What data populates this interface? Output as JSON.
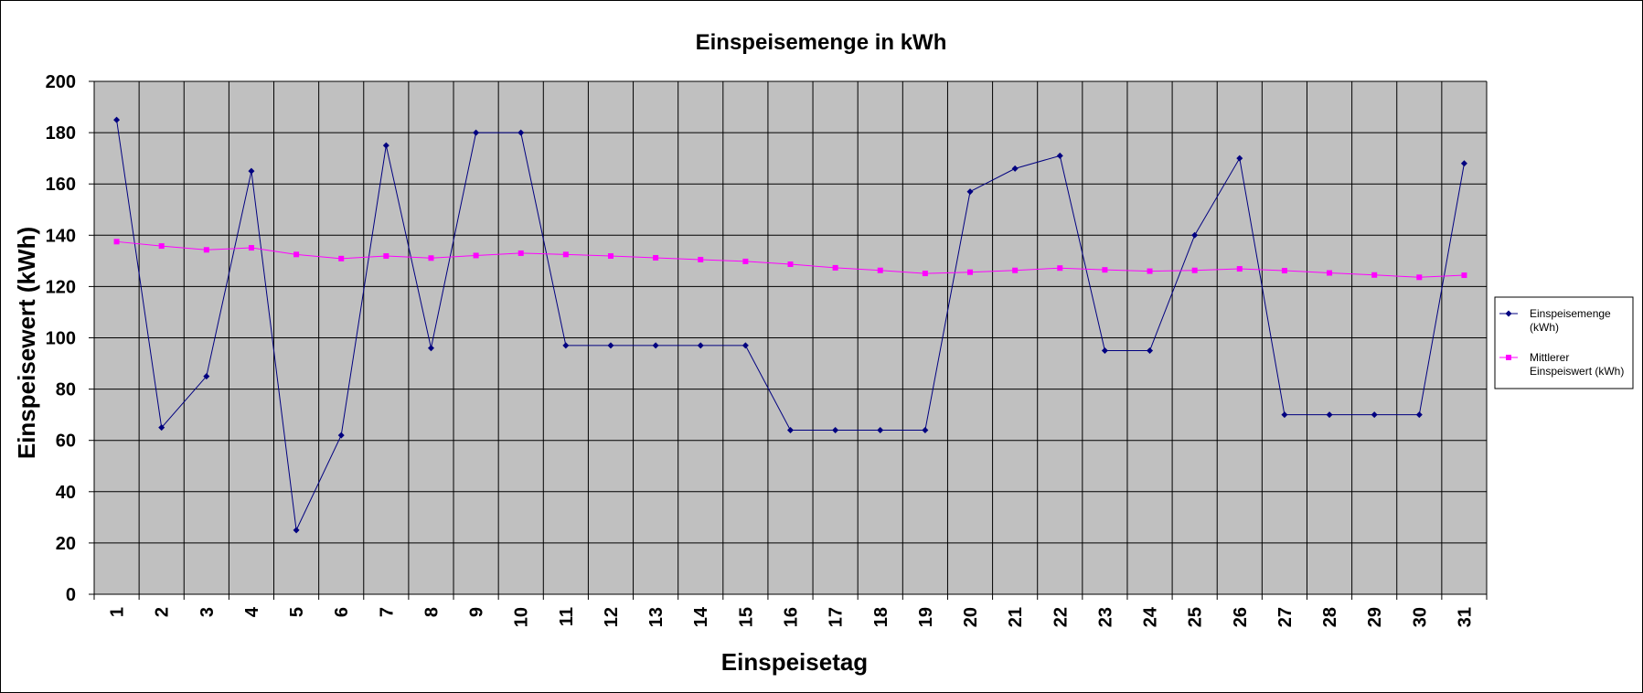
{
  "chart_data": {
    "type": "line",
    "title": "Einspeisemenge in kWh",
    "xlabel": "Einspeisetag",
    "ylabel": "Einspeisewert  (kWh)",
    "x": [
      1,
      2,
      3,
      4,
      5,
      6,
      7,
      8,
      9,
      10,
      11,
      12,
      13,
      14,
      15,
      16,
      17,
      18,
      19,
      20,
      21,
      22,
      23,
      24,
      25,
      26,
      27,
      28,
      29,
      30,
      31
    ],
    "ylim": [
      0,
      200
    ],
    "yticks": [
      0,
      20,
      40,
      60,
      80,
      100,
      120,
      140,
      160,
      180,
      200
    ],
    "grid": true,
    "legend_position": "right",
    "plot_background": "#c0c0c0",
    "series": [
      {
        "name": "Einspeisemenge\n(kWh)",
        "color": "#000080",
        "marker": "diamond",
        "values": [
          185,
          65,
          85,
          165,
          25,
          62,
          175,
          96,
          180,
          180,
          97,
          97,
          97,
          97,
          97,
          64,
          64,
          64,
          64,
          157,
          166,
          171,
          95,
          95,
          140,
          170,
          70,
          70,
          70,
          70,
          168
        ]
      },
      {
        "name": "Mittlerer\nEinspeiswert (kWh)",
        "color": "#ff00ff",
        "marker": "square",
        "values": [
          137.5,
          135.8,
          134.3,
          135.1,
          132.5,
          130.9,
          131.9,
          131.1,
          132.1,
          133.0,
          132.5,
          131.9,
          131.2,
          130.5,
          129.8,
          128.7,
          127.3,
          126.3,
          125.1,
          125.6,
          126.3,
          127.2,
          126.5,
          126.0,
          126.3,
          126.9,
          126.2,
          125.3,
          124.5,
          123.6,
          124.4
        ]
      }
    ]
  }
}
